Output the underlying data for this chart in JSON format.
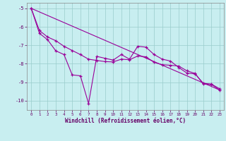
{
  "bg_color": "#c8eef0",
  "line_color": "#990099",
  "grid_color": "#99cccc",
  "xlabel": "Windchill (Refroidissement éolien,°C)",
  "xlim": [
    -0.5,
    23.5
  ],
  "ylim": [
    -10.5,
    -4.7
  ],
  "yticks": [
    -10,
    -9,
    -8,
    -7,
    -6,
    -5
  ],
  "xticks": [
    0,
    1,
    2,
    3,
    4,
    5,
    6,
    7,
    8,
    9,
    10,
    11,
    12,
    13,
    14,
    15,
    16,
    17,
    18,
    19,
    20,
    21,
    22,
    23
  ],
  "series1_x": [
    0,
    1,
    2,
    3,
    4,
    5,
    6,
    7,
    8,
    9,
    10,
    11,
    12,
    13,
    14,
    15,
    16,
    17,
    18,
    19,
    20,
    21,
    22,
    23
  ],
  "series1_y": [
    -5.0,
    -6.35,
    -6.7,
    -7.3,
    -7.5,
    -8.6,
    -8.65,
    -10.15,
    -7.6,
    -7.7,
    -7.8,
    -7.5,
    -7.75,
    -7.05,
    -7.1,
    -7.5,
    -7.75,
    -7.85,
    -8.2,
    -8.5,
    -8.55,
    -9.05,
    -9.1,
    -9.35
  ],
  "series2_x": [
    0,
    1,
    2,
    3,
    4,
    5,
    6,
    7,
    8,
    9,
    10,
    11,
    12,
    13,
    14,
    15,
    16,
    17,
    18,
    19,
    20,
    21,
    22,
    23
  ],
  "series2_y": [
    -5.0,
    -6.2,
    -6.55,
    -6.75,
    -7.05,
    -7.28,
    -7.5,
    -7.75,
    -7.82,
    -7.88,
    -7.9,
    -7.75,
    -7.78,
    -7.58,
    -7.62,
    -7.92,
    -8.05,
    -8.08,
    -8.12,
    -8.38,
    -8.52,
    -9.1,
    -9.12,
    -9.42
  ],
  "series3_x": [
    0,
    23
  ],
  "series3_y": [
    -5.0,
    -9.42
  ],
  "spine_color": "#888888",
  "tick_color": "#660066",
  "label_color": "#660066"
}
